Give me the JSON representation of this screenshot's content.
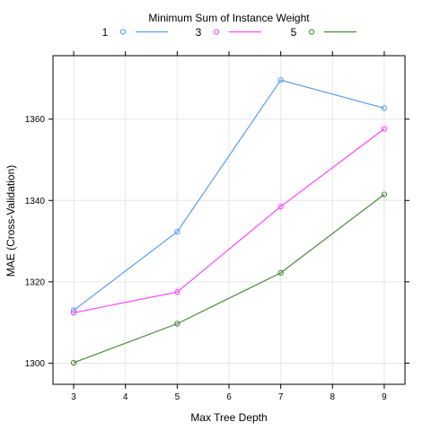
{
  "chart_data": {
    "type": "line",
    "xlabel": "Max Tree Depth",
    "ylabel": "MAE (Cross-Validation)",
    "xlim": [
      2.6,
      9.4
    ],
    "ylim": [
      1294.8,
      1375.6
    ],
    "x_ticks": [
      3,
      4,
      5,
      6,
      7,
      8,
      9
    ],
    "y_ticks": [
      1300,
      1320,
      1340,
      1360
    ],
    "grid": true,
    "legend": {
      "title": "Minimum Sum of Instance Weight",
      "position": "top"
    },
    "x": [
      3,
      5,
      7,
      9
    ],
    "series": [
      {
        "name": "1",
        "color": "#5b9cf5",
        "values": [
          1313.0,
          1332.3,
          1369.6,
          1362.7
        ]
      },
      {
        "name": "3",
        "color": "#ff44ff",
        "values": [
          1312.4,
          1317.5,
          1338.5,
          1357.6
        ]
      },
      {
        "name": "5",
        "color": "#4a8a3a",
        "values": [
          1300.1,
          1309.7,
          1322.2,
          1341.5
        ]
      }
    ]
  }
}
